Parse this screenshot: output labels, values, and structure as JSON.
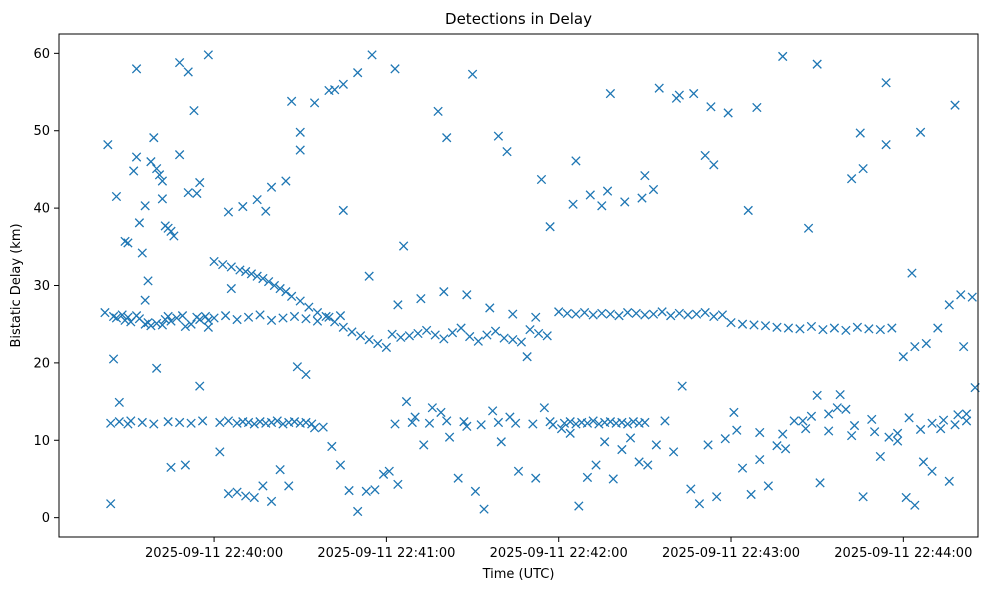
{
  "chart_data": {
    "type": "scatter",
    "title": "Detections in Delay",
    "xlabel": "Time (UTC)",
    "ylabel": "Bistatic Delay (km)",
    "marker": "x",
    "marker_color": "#1f77b4",
    "grid": false,
    "legend": "none",
    "xlim": [
      "2025-09-11 22:39:06",
      "2025-09-11 22:44:26"
    ],
    "ylim": [
      -2.5,
      62.5
    ],
    "x_ticks": [
      "2025-09-11 22:40:00",
      "2025-09-11 22:41:00",
      "2025-09-11 22:42:00",
      "2025-09-11 22:43:00",
      "2025-09-11 22:44:00"
    ],
    "y_ticks": [
      0,
      10,
      20,
      30,
      40,
      50,
      60
    ],
    "series": [
      {
        "x": [
          "2025-09-11 22:39:22",
          "2025-09-11 22:39:25",
          "2025-09-11 22:39:26",
          "2025-09-11 22:39:28",
          "2025-09-11 22:39:29",
          "2025-09-11 22:39:30",
          "2025-09-11 22:39:31",
          "2025-09-11 22:39:33",
          "2025-09-11 22:39:34",
          "2025-09-11 22:39:36",
          "2025-09-11 22:39:37",
          "2025-09-11 22:39:38",
          "2025-09-11 22:39:40",
          "2025-09-11 22:39:42",
          "2025-09-11 22:39:43",
          "2025-09-11 22:39:44",
          "2025-09-11 22:39:45",
          "2025-09-11 22:39:47",
          "2025-09-11 22:39:49",
          "2025-09-11 22:39:50",
          "2025-09-11 22:39:52",
          "2025-09-11 22:39:54",
          "2025-09-11 22:39:55",
          "2025-09-11 22:39:57",
          "2025-09-11 22:39:58",
          "2025-09-11 22:39:23",
          "2025-09-11 22:39:26",
          "2025-09-11 22:39:29",
          "2025-09-11 22:39:32",
          "2025-09-11 22:39:33",
          "2025-09-11 22:39:34",
          "2025-09-11 22:39:35",
          "2025-09-11 22:39:36",
          "2025-09-11 22:39:37",
          "2025-09-11 22:39:38",
          "2025-09-11 22:39:39",
          "2025-09-11 22:39:40",
          "2025-09-11 22:39:41",
          "2025-09-11 22:39:42",
          "2025-09-11 22:39:43",
          "2025-09-11 22:39:44",
          "2025-09-11 22:39:45",
          "2025-09-11 22:39:46",
          "2025-09-11 22:39:48",
          "2025-09-11 22:39:51",
          "2025-09-11 22:39:53",
          "2025-09-11 22:39:55",
          "2025-09-11 22:39:58",
          "2025-09-11 22:39:24",
          "2025-09-11 22:39:27",
          "2025-09-11 22:39:31",
          "2025-09-11 22:39:35",
          "2025-09-11 22:39:39",
          "2025-09-11 22:39:44",
          "2025-09-11 22:39:48",
          "2025-09-11 22:39:52",
          "2025-09-11 22:39:56",
          "2025-09-11 22:40:00",
          "2025-09-11 22:40:03",
          "2025-09-11 22:40:06",
          "2025-09-11 22:40:09",
          "2025-09-11 22:40:11",
          "2025-09-11 22:40:13",
          "2025-09-11 22:40:15",
          "2025-09-11 22:40:17",
          "2025-09-11 22:40:19",
          "2025-09-11 22:40:21",
          "2025-09-11 22:40:23",
          "2025-09-11 22:40:25",
          "2025-09-11 22:40:27",
          "2025-09-11 22:40:30",
          "2025-09-11 22:40:33",
          "2025-09-11 22:40:36",
          "2025-09-11 22:40:39",
          "2025-09-11 22:40:42",
          "2025-09-11 22:40:45",
          "2025-09-11 22:40:48",
          "2025-09-11 22:40:51",
          "2025-09-11 22:40:54",
          "2025-09-11 22:40:57",
          "2025-09-11 22:41:00",
          "2025-09-11 22:40:02",
          "2025-09-11 22:40:05",
          "2025-09-11 22:40:08",
          "2025-09-11 22:40:10",
          "2025-09-11 22:40:12",
          "2025-09-11 22:40:14",
          "2025-09-11 22:40:16",
          "2025-09-11 22:40:18",
          "2025-09-11 22:40:20",
          "2025-09-11 22:40:22",
          "2025-09-11 22:40:24",
          "2025-09-11 22:40:26",
          "2025-09-11 22:40:28",
          "2025-09-11 22:40:30",
          "2025-09-11 22:40:32",
          "2025-09-11 22:40:34",
          "2025-09-11 22:40:00",
          "2025-09-11 22:40:04",
          "2025-09-11 22:40:08",
          "2025-09-11 22:40:12",
          "2025-09-11 22:40:16",
          "2025-09-11 22:40:20",
          "2025-09-11 22:40:24",
          "2025-09-11 22:40:28",
          "2025-09-11 22:40:32",
          "2025-09-11 22:40:36",
          "2025-09-11 22:40:40",
          "2025-09-11 22:40:44",
          "2025-09-11 22:40:05",
          "2025-09-11 22:40:10",
          "2025-09-11 22:40:15",
          "2025-09-11 22:40:20",
          "2025-09-11 22:40:25",
          "2025-09-11 22:40:30",
          "2025-09-11 22:40:35",
          "2025-09-11 22:40:40",
          "2025-09-11 22:40:45",
          "2025-09-11 22:40:50",
          "2025-09-11 22:40:55",
          "2025-09-11 22:41:02",
          "2025-09-11 22:41:05",
          "2025-09-11 22:41:08",
          "2025-09-11 22:41:11",
          "2025-09-11 22:41:14",
          "2025-09-11 22:41:17",
          "2025-09-11 22:41:20",
          "2025-09-11 22:41:23",
          "2025-09-11 22:41:26",
          "2025-09-11 22:41:29",
          "2025-09-11 22:41:32",
          "2025-09-11 22:41:35",
          "2025-09-11 22:41:38",
          "2025-09-11 22:41:41",
          "2025-09-11 22:41:44",
          "2025-09-11 22:41:47",
          "2025-09-11 22:41:50",
          "2025-09-11 22:41:53",
          "2025-09-11 22:41:56",
          "2025-09-11 22:41:03",
          "2025-09-11 22:41:09",
          "2025-09-11 22:41:15",
          "2025-09-11 22:41:21",
          "2025-09-11 22:41:27",
          "2025-09-11 22:41:33",
          "2025-09-11 22:41:39",
          "2025-09-11 22:41:45",
          "2025-09-11 22:41:51",
          "2025-09-11 22:41:57",
          "2025-09-11 22:41:04",
          "2025-09-11 22:41:12",
          "2025-09-11 22:41:20",
          "2025-09-11 22:41:28",
          "2025-09-11 22:41:36",
          "2025-09-11 22:41:44",
          "2025-09-11 22:41:52",
          "2025-09-11 22:42:00",
          "2025-09-11 22:42:03",
          "2025-09-11 22:42:06",
          "2025-09-11 22:42:09",
          "2025-09-11 22:42:12",
          "2025-09-11 22:42:15",
          "2025-09-11 22:42:18",
          "2025-09-11 22:42:21",
          "2025-09-11 22:42:24",
          "2025-09-11 22:42:27",
          "2025-09-11 22:42:30",
          "2025-09-11 22:42:33",
          "2025-09-11 22:42:36",
          "2025-09-11 22:42:39",
          "2025-09-11 22:42:42",
          "2025-09-11 22:42:45",
          "2025-09-11 22:42:48",
          "2025-09-11 22:42:51",
          "2025-09-11 22:42:54",
          "2025-09-11 22:42:57",
          "2025-09-11 22:42:02",
          "2025-09-11 22:42:04",
          "2025-09-11 22:42:06",
          "2025-09-11 22:42:08",
          "2025-09-11 22:42:10",
          "2025-09-11 22:42:12",
          "2025-09-11 22:42:14",
          "2025-09-11 22:42:16",
          "2025-09-11 22:42:18",
          "2025-09-11 22:42:20",
          "2025-09-11 22:42:22",
          "2025-09-11 22:42:24",
          "2025-09-11 22:42:26",
          "2025-09-11 22:42:28",
          "2025-09-11 22:42:30",
          "2025-09-11 22:42:05",
          "2025-09-11 22:42:11",
          "2025-09-11 22:42:17",
          "2025-09-11 22:42:23",
          "2025-09-11 22:42:29",
          "2025-09-11 22:42:35",
          "2025-09-11 22:42:41",
          "2025-09-11 22:42:47",
          "2025-09-11 22:42:53",
          "2025-09-11 22:42:59",
          "2025-09-11 22:43:00",
          "2025-09-11 22:43:04",
          "2025-09-11 22:43:08",
          "2025-09-11 22:43:12",
          "2025-09-11 22:43:16",
          "2025-09-11 22:43:20",
          "2025-09-11 22:43:24",
          "2025-09-11 22:43:28",
          "2025-09-11 22:43:32",
          "2025-09-11 22:43:36",
          "2025-09-11 22:43:40",
          "2025-09-11 22:43:44",
          "2025-09-11 22:43:48",
          "2025-09-11 22:43:52",
          "2025-09-11 22:43:56",
          "2025-09-11 22:43:02",
          "2025-09-11 22:43:10",
          "2025-09-11 22:43:18",
          "2025-09-11 22:43:26",
          "2025-09-11 22:43:34",
          "2025-09-11 22:43:42",
          "2025-09-11 22:43:50",
          "2025-09-11 22:43:58",
          "2025-09-11 22:44:00",
          "2025-09-11 22:44:04",
          "2025-09-11 22:44:08",
          "2025-09-11 22:44:12",
          "2025-09-11 22:44:16",
          "2025-09-11 22:44:20",
          "2025-09-11 22:44:24",
          "2025-09-11 22:44:02",
          "2025-09-11 22:44:06",
          "2025-09-11 22:44:10",
          "2025-09-11 22:44:14",
          "2025-09-11 22:44:18",
          "2025-09-11 22:44:22",
          "2025-09-11 22:43:30",
          "2025-09-11 22:43:38",
          "2025-09-11 22:43:46",
          "2025-09-11 22:43:54"
        ],
        "y": [
          26.5,
          26,
          25.8,
          26.2,
          25.5,
          25.9,
          25.3,
          26.1,
          25.7,
          25,
          25.2,
          24.8,
          25.1,
          24.9,
          25.6,
          26,
          25.4,
          25.8,
          26.1,
          24.7,
          25,
          25.9,
          25.6,
          26,
          25.5,
          48.2,
          41.5,
          35.7,
          44.8,
          46.6,
          38.1,
          34.2,
          28.1,
          30.6,
          46,
          49.1,
          45.1,
          44.3,
          41.2,
          37.7,
          37.4,
          37,
          36.4,
          46.9,
          42,
          52.6,
          43.3,
          59.8,
          12.2,
          12.4,
          12.5,
          12.3,
          12.1,
          12.4,
          12.3,
          12.2,
          12.5,
          33.1,
          32.7,
          32.4,
          32,
          31.8,
          31.5,
          31.2,
          30.9,
          30.5,
          30,
          29.6,
          29.2,
          28.6,
          28,
          27.2,
          26.5,
          26,
          25.3,
          24.6,
          24,
          23.5,
          23,
          22.5,
          22,
          12.3,
          12.5,
          12.2,
          12.4,
          12.3,
          12.1,
          12.4,
          12.2,
          12.3,
          12.5,
          12.1,
          12.3,
          12.4,
          12.2,
          12.3,
          12.1,
          25.8,
          26.1,
          25.6,
          25.9,
          26.2,
          25.5,
          25.8,
          26,
          25.7,
          25.4,
          25.9,
          26.1,
          39.5,
          40.2,
          41.1,
          42.7,
          43.5,
          49.8,
          53.6,
          55.2,
          56,
          57.5,
          59.8,
          23.7,
          23.3,
          23.5,
          23.8,
          24.2,
          23.6,
          23.1,
          23.9,
          24.5,
          23.4,
          22.8,
          23.6,
          24.1,
          23.2,
          23,
          22.7,
          24.3,
          23.8,
          23.5,
          12.1,
          12.3,
          12.2,
          12.5,
          12.4,
          12,
          12.3,
          12.2,
          12.1,
          12.4,
          27.5,
          28.3,
          29.2,
          28.8,
          27.1,
          26.3,
          25.9,
          26.6,
          26.4,
          26.3,
          26.5,
          26.2,
          26.4,
          26.3,
          26.1,
          26.5,
          26.4,
          26.2,
          26.3,
          26.6,
          26.1,
          26.4,
          26.2,
          26.3,
          26.5,
          26,
          26.2,
          12.2,
          12.4,
          12.1,
          12.3,
          12.2,
          12.5,
          12.1,
          12.3,
          12.4,
          12.2,
          12.3,
          12.1,
          12.4,
          12.2,
          12.3,
          40.5,
          41.7,
          42.2,
          40.8,
          41.3,
          55.5,
          54.2,
          54.8,
          53.1,
          52.3,
          25.2,
          25,
          24.9,
          24.8,
          24.6,
          24.5,
          24.4,
          24.7,
          24.3,
          24.5,
          24.2,
          24.6,
          24.4,
          24.3,
          24.5,
          11.3,
          11,
          10.8,
          11.5,
          11.2,
          10.6,
          11.1,
          10.9,
          20.8,
          22.1,
          22.5,
          24.5,
          27.5,
          28.8,
          28.5,
          12.9,
          11.4,
          12.2,
          12.6,
          12,
          13.4,
          15.8,
          15.9,
          45.1,
          48.2
        ]
      },
      {
        "x": [
          "2025-09-11 22:39:24",
          "2025-09-11 22:39:27",
          "2025-09-11 22:39:30",
          "2025-09-11 22:39:40",
          "2025-09-11 22:39:45",
          "2025-09-11 22:39:50",
          "2025-09-11 22:39:55",
          "2025-09-11 22:39:58",
          "2025-09-11 22:40:02",
          "2025-09-11 22:40:05",
          "2025-09-11 22:40:08",
          "2025-09-11 22:40:11",
          "2025-09-11 22:40:14",
          "2025-09-11 22:40:17",
          "2025-09-11 22:40:20",
          "2025-09-11 22:40:23",
          "2025-09-11 22:40:26",
          "2025-09-11 22:40:29",
          "2025-09-11 22:40:32",
          "2025-09-11 22:40:35",
          "2025-09-11 22:40:38",
          "2025-09-11 22:40:41",
          "2025-09-11 22:40:44",
          "2025-09-11 22:40:47",
          "2025-09-11 22:40:50",
          "2025-09-11 22:40:53",
          "2025-09-11 22:40:56",
          "2025-09-11 22:40:59",
          "2025-09-11 22:41:01",
          "2025-09-11 22:41:04",
          "2025-09-11 22:41:07",
          "2025-09-11 22:41:10",
          "2025-09-11 22:41:13",
          "2025-09-11 22:41:16",
          "2025-09-11 22:41:19",
          "2025-09-11 22:41:22",
          "2025-09-11 22:41:25",
          "2025-09-11 22:41:28",
          "2025-09-11 22:41:31",
          "2025-09-11 22:41:34",
          "2025-09-11 22:41:37",
          "2025-09-11 22:41:40",
          "2025-09-11 22:41:43",
          "2025-09-11 22:41:46",
          "2025-09-11 22:41:49",
          "2025-09-11 22:41:52",
          "2025-09-11 22:41:55",
          "2025-09-11 22:41:58",
          "2025-09-11 22:42:01",
          "2025-09-11 22:42:04",
          "2025-09-11 22:42:07",
          "2025-09-11 22:42:10",
          "2025-09-11 22:42:13",
          "2025-09-11 22:42:16",
          "2025-09-11 22:42:19",
          "2025-09-11 22:42:22",
          "2025-09-11 22:42:25",
          "2025-09-11 22:42:28",
          "2025-09-11 22:42:31",
          "2025-09-11 22:42:34",
          "2025-09-11 22:42:37",
          "2025-09-11 22:42:40",
          "2025-09-11 22:42:43",
          "2025-09-11 22:42:46",
          "2025-09-11 22:42:49",
          "2025-09-11 22:42:52",
          "2025-09-11 22:42:55",
          "2025-09-11 22:42:58",
          "2025-09-11 22:43:01",
          "2025-09-11 22:43:04",
          "2025-09-11 22:43:07",
          "2025-09-11 22:43:10",
          "2025-09-11 22:43:13",
          "2025-09-11 22:43:16",
          "2025-09-11 22:43:19",
          "2025-09-11 22:43:22",
          "2025-09-11 22:43:25",
          "2025-09-11 22:43:28",
          "2025-09-11 22:43:31",
          "2025-09-11 22:43:34",
          "2025-09-11 22:43:37",
          "2025-09-11 22:43:40",
          "2025-09-11 22:43:43",
          "2025-09-11 22:43:46",
          "2025-09-11 22:43:49",
          "2025-09-11 22:43:52",
          "2025-09-11 22:43:55",
          "2025-09-11 22:43:58",
          "2025-09-11 22:44:01",
          "2025-09-11 22:44:04",
          "2025-09-11 22:44:07",
          "2025-09-11 22:44:10",
          "2025-09-11 22:44:13",
          "2025-09-11 22:44:16",
          "2025-09-11 22:44:19",
          "2025-09-11 22:44:22",
          "2025-09-11 22:44:25"
        ],
        "y": [
          1.8,
          14.9,
          12.1,
          19.3,
          6.5,
          6.8,
          17,
          24.6,
          8.5,
          3.1,
          3.3,
          2.8,
          2.6,
          4.1,
          2.1,
          6.2,
          4.1,
          19.5,
          18.5,
          11.6,
          11.7,
          9.2,
          6.8,
          3.5,
          0.8,
          3.4,
          3.6,
          5.6,
          6,
          4.3,
          15,
          13,
          9.4,
          14.2,
          13.6,
          10.4,
          5.1,
          11.8,
          3.4,
          1.1,
          13.8,
          9.8,
          13,
          6,
          20.8,
          5.1,
          14.2,
          12,
          11.5,
          10.9,
          1.5,
          5.2,
          6.8,
          9.8,
          5,
          8.8,
          10.3,
          7.2,
          6.8,
          9.4,
          12.5,
          8.5,
          17,
          3.7,
          1.8,
          9.4,
          2.7,
          10.2,
          13.6,
          6.4,
          3,
          7.5,
          4.1,
          9.3,
          8.9,
          12.5,
          12.5,
          13.1,
          4.5,
          13.4,
          14.2,
          14,
          11.9,
          2.7,
          12.7,
          7.9,
          10.4,
          9.9,
          2.6,
          1.6,
          7.2,
          6,
          11.5,
          4.7,
          13.3,
          12.5,
          16.8
        ]
      },
      {
        "x": [
          "2025-09-11 22:39:25",
          "2025-09-11 22:39:30",
          "2025-09-11 22:39:36",
          "2025-09-11 22:39:42",
          "2025-09-11 22:39:48",
          "2025-09-11 22:39:54",
          "2025-09-11 22:40:06",
          "2025-09-11 22:40:18",
          "2025-09-11 22:40:30",
          "2025-09-11 22:40:42",
          "2025-09-11 22:40:54",
          "2025-09-11 22:41:06",
          "2025-09-11 22:41:18",
          "2025-09-11 22:41:30",
          "2025-09-11 22:41:42",
          "2025-09-11 22:41:54",
          "2025-09-11 22:42:06",
          "2025-09-11 22:42:18",
          "2025-09-11 22:42:30",
          "2025-09-11 22:42:42",
          "2025-09-11 22:42:54",
          "2025-09-11 22:43:06",
          "2025-09-11 22:43:18",
          "2025-09-11 22:43:30",
          "2025-09-11 22:43:42",
          "2025-09-11 22:43:54",
          "2025-09-11 22:44:06",
          "2025-09-11 22:44:18",
          "2025-09-11 22:39:33",
          "2025-09-11 22:39:51",
          "2025-09-11 22:40:27",
          "2025-09-11 22:40:45",
          "2025-09-11 22:41:03",
          "2025-09-11 22:41:21",
          "2025-09-11 22:41:39",
          "2025-09-11 22:41:57",
          "2025-09-11 22:42:15",
          "2025-09-11 22:42:33",
          "2025-09-11 22:42:51",
          "2025-09-11 22:43:09",
          "2025-09-11 22:43:27",
          "2025-09-11 22:43:45",
          "2025-09-11 22:44:03",
          "2025-09-11 22:44:21"
        ],
        "y": [
          20.5,
          35.5,
          40.3,
          43.5,
          58.8,
          41.9,
          29.6,
          39.6,
          47.5,
          55.3,
          31.2,
          35.1,
          52.5,
          57.3,
          47.3,
          43.7,
          46.1,
          54.8,
          44.2,
          54.6,
          45.6,
          39.7,
          59.6,
          58.6,
          43.8,
          56.2,
          49.8,
          53.3,
          58,
          57.6,
          53.8,
          39.7,
          58,
          49.1,
          49.3,
          37.6,
          40.3,
          42.4,
          46.8,
          53,
          37.4,
          49.7,
          31.6,
          22.1
        ]
      }
    ]
  }
}
